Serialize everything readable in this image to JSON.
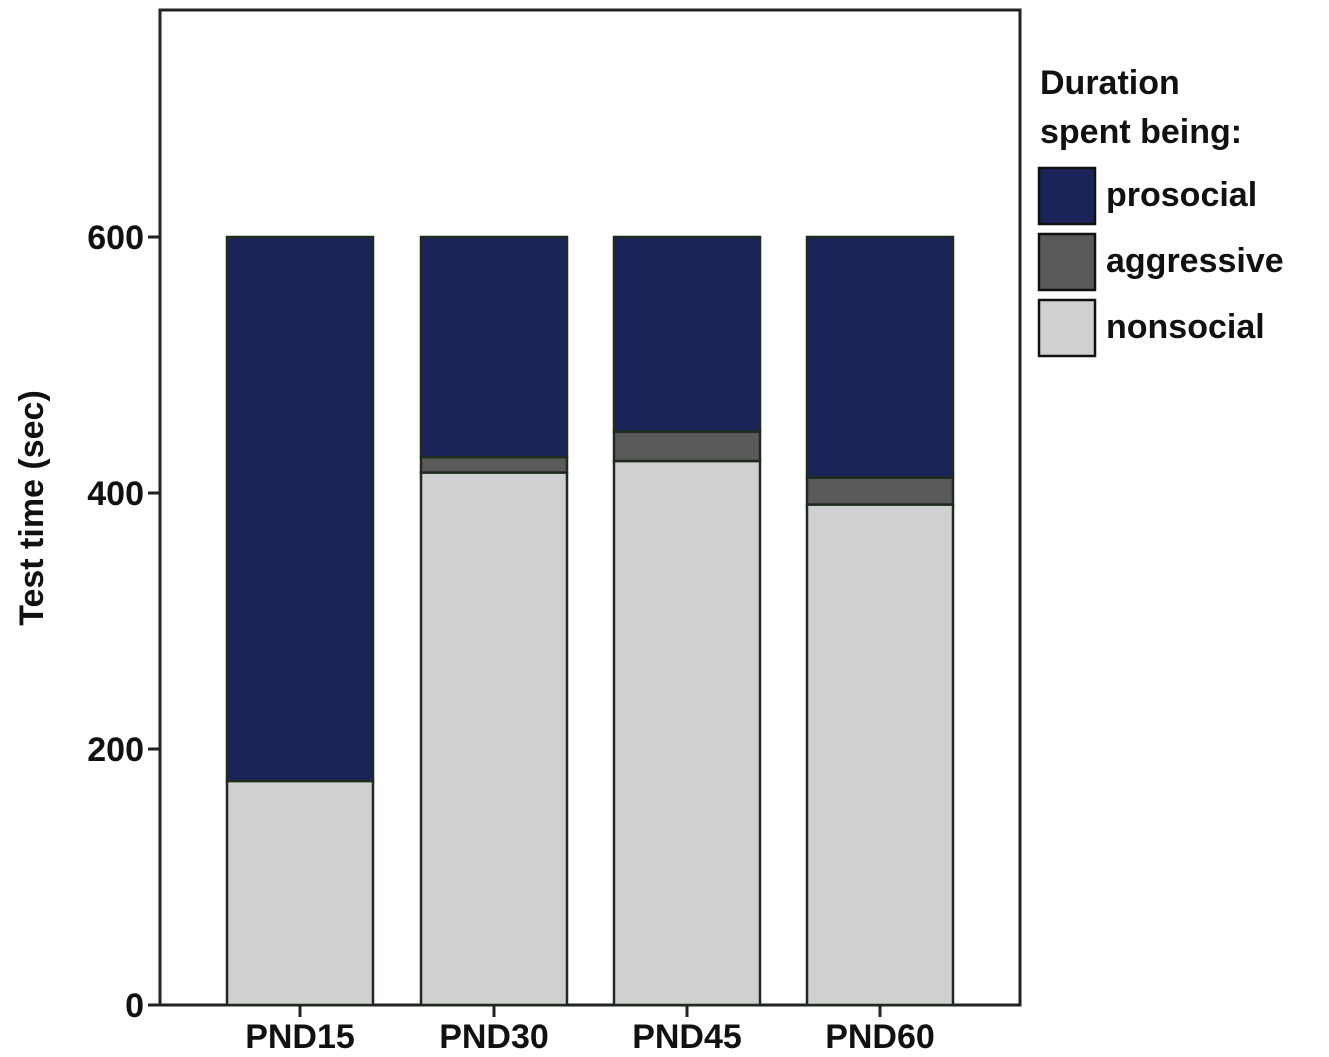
{
  "chart_data": {
    "type": "bar",
    "stacked": true,
    "categories": [
      "PND15",
      "PND30",
      "PND45",
      "PND60"
    ],
    "series": [
      {
        "name": "nonsocial",
        "color": "#d0d0d0",
        "values": [
          175,
          416,
          425,
          391
        ]
      },
      {
        "name": "aggressive",
        "color": "#5a5a5a",
        "values": [
          0,
          12,
          23,
          21
        ]
      },
      {
        "name": "prosocial",
        "color": "#1b2459",
        "values": [
          425,
          172,
          152,
          188
        ]
      }
    ],
    "title": "",
    "xlabel": "",
    "ylabel": "Test time (sec)",
    "ylim": [
      0,
      800
    ],
    "yticks": [
      0,
      200,
      400,
      600
    ],
    "grid": false,
    "legend": {
      "title_lines": [
        "Duration",
        "spent being:"
      ],
      "placement": "right",
      "order": [
        "prosocial",
        "aggressive",
        "nonsocial"
      ]
    }
  }
}
